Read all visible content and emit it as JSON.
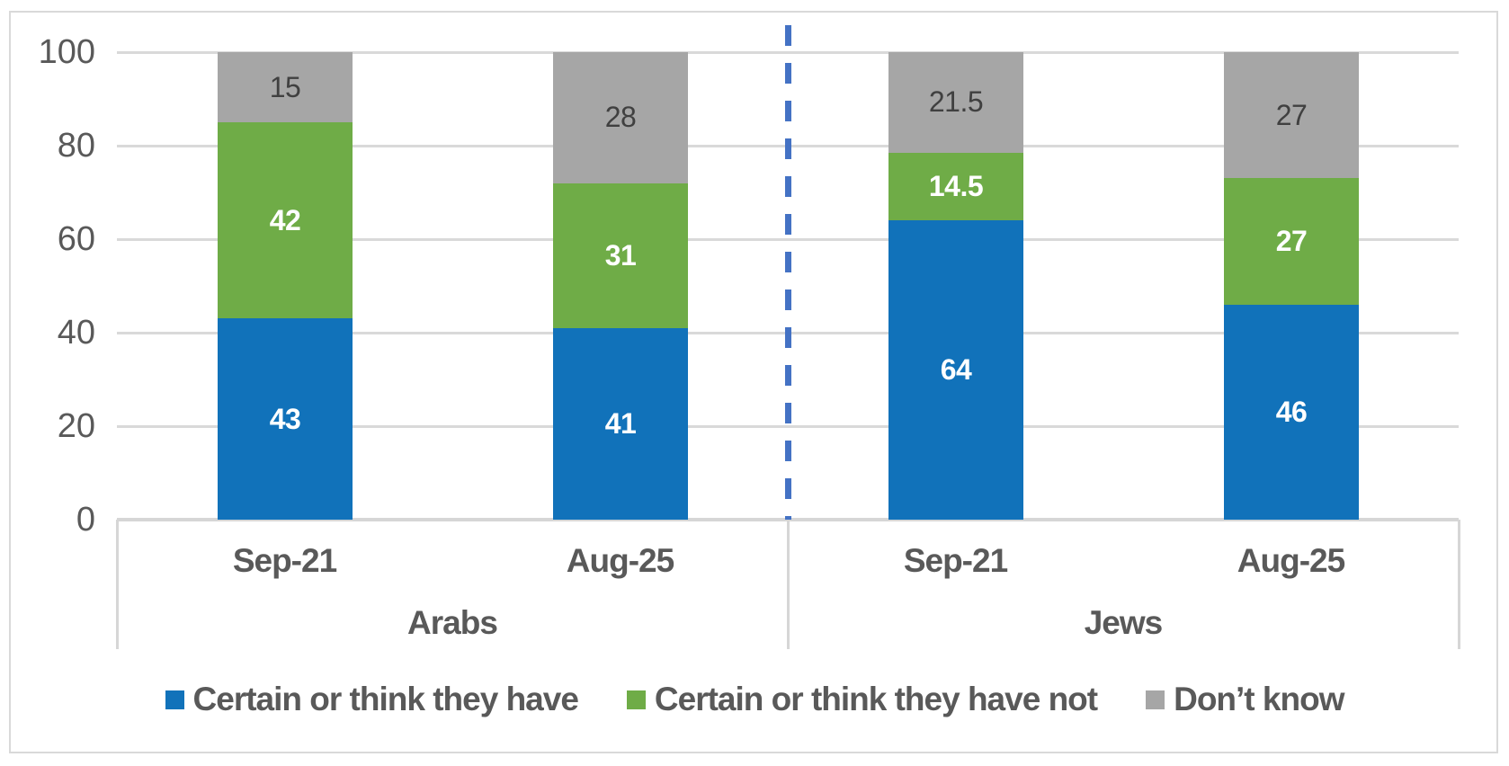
{
  "chart_data": {
    "type": "bar",
    "subtype": "stacked-vertical-columns",
    "title": "",
    "y_axis": {
      "min": 0,
      "max": 100,
      "ticks": [
        0,
        20,
        40,
        60,
        80,
        100
      ],
      "gridlines": true
    },
    "categories": [
      "Sep-21",
      "Aug-25",
      "Sep-21",
      "Aug-25"
    ],
    "groups": [
      {
        "label": "Arabs",
        "span": [
          0,
          1
        ]
      },
      {
        "label": "Jews",
        "span": [
          2,
          3
        ]
      }
    ],
    "series": [
      {
        "key": "have",
        "name": "Certain or think they have",
        "color": "#1172BA",
        "label_color": "#FFFFFF",
        "label_bold": true,
        "values": [
          43,
          41,
          64,
          46
        ]
      },
      {
        "key": "have_not",
        "name": "Certain or think they have not",
        "color": "#6FAC47",
        "label_color": "#FFFFFF",
        "label_bold": true,
        "values": [
          42,
          31,
          14.5,
          27
        ]
      },
      {
        "key": "dont_know",
        "name": "Don’t know",
        "color": "#A6A6A6",
        "label_color": "#404040",
        "label_bold": false,
        "values": [
          15,
          28,
          21.5,
          27
        ]
      }
    ],
    "group_divider": {
      "style": "dashed",
      "color": "#4472C4"
    },
    "legend_position": "bottom",
    "style_colors": {
      "gridline": "#D9D9D9",
      "axis_line": "#D6D6D6",
      "frame_border": "#D9D9D9",
      "axis_text": "#595959",
      "plot_background": "#FFFFFF"
    }
  }
}
